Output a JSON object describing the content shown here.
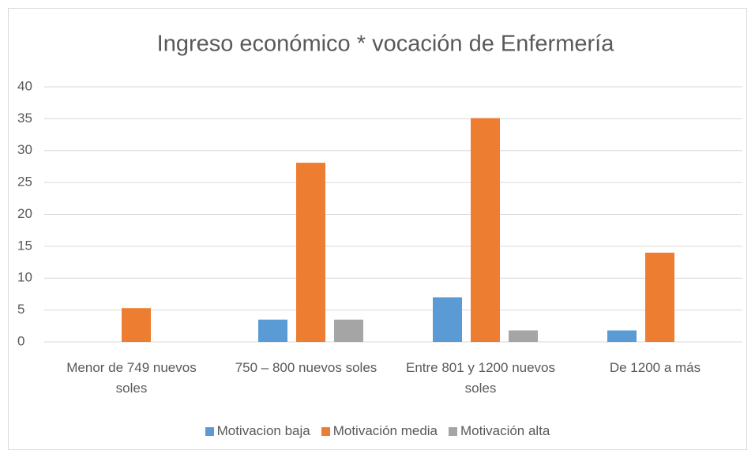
{
  "chart_data": {
    "type": "bar",
    "title": "Ingreso económico * vocación de Enfermería",
    "categories": [
      "Menor de 749 nuevos soles",
      "750 – 800 nuevos soles",
      "Entre 801 y 1200 nuevos soles",
      "De 1200 a más"
    ],
    "series": [
      {
        "name": "Motivacion baja",
        "color": "#5b9bd5",
        "values": [
          0,
          3.5,
          7,
          1.8
        ]
      },
      {
        "name": "Motivación media",
        "color": "#ed7d31",
        "values": [
          5.3,
          28.1,
          35.1,
          14
        ]
      },
      {
        "name": "Motivación alta",
        "color": "#a5a5a5",
        "values": [
          0,
          3.5,
          1.8,
          0
        ]
      }
    ],
    "ylim": [
      0,
      40
    ],
    "yticks": [
      0,
      5,
      10,
      15,
      20,
      25,
      30,
      35,
      40
    ],
    "grid": true,
    "legend": "bottom"
  }
}
